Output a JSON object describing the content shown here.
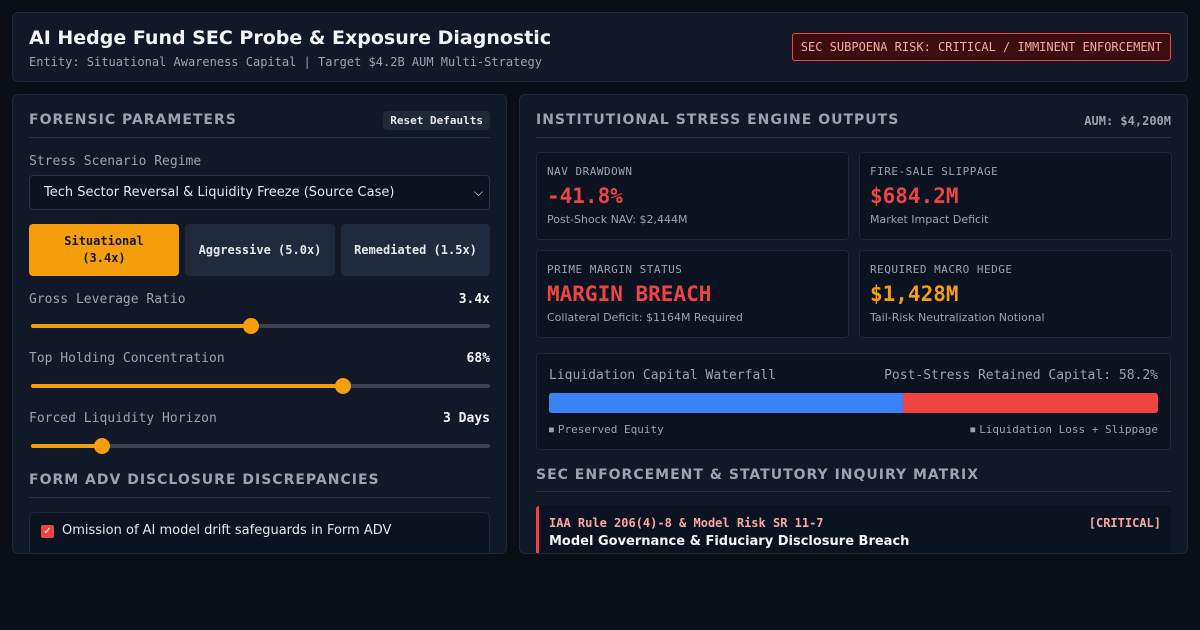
{
  "header": {
    "title": "AI Hedge Fund SEC Probe & Exposure Diagnostic",
    "subtitle": "Entity: Situational Awareness Capital | Target $4.2B AUM Multi-Strategy",
    "risk_badge": "SEC SUBPOENA RISK: CRITICAL / IMMINENT ENFORCEMENT"
  },
  "forensic": {
    "title": "FORENSIC PARAMETERS",
    "reset_label": "Reset Defaults",
    "scenario_label": "Stress Scenario Regime",
    "scenario_value": "Tech Sector Reversal & Liquidity Freeze (Source Case)",
    "presets": [
      {
        "label": "Situational\n(3.4x)",
        "active": true
      },
      {
        "label": "Aggressive (5.0x)",
        "active": false
      },
      {
        "label": "Remediated (1.5x)",
        "active": false
      }
    ],
    "sliders": [
      {
        "label": "Gross Leverage Ratio",
        "display": "3.4x",
        "fraction": 0.48
      },
      {
        "label": "Top Holding Concentration",
        "display": "68%",
        "fraction": 0.68
      },
      {
        "label": "Forced Liquidity Horizon",
        "display": "3 Days",
        "fraction": 0.155
      }
    ]
  },
  "adv": {
    "title": "FORM ADV DISCLOSURE DISCREPANCIES",
    "items": [
      {
        "label": "Omission of AI model drift safeguards in Form ADV",
        "checked": true
      }
    ]
  },
  "outputs": {
    "title": "INSTITUTIONAL STRESS ENGINE OUTPUTS",
    "aum": "AUM: $4,200M",
    "metrics": [
      {
        "label": "NAV DRAWDOWN",
        "value": "-41.8%",
        "sub": "Post-Shock NAV: $2,444M",
        "tone": "red"
      },
      {
        "label": "FIRE-SALE SLIPPAGE",
        "value": "$684.2M",
        "sub": "Market Impact Deficit",
        "tone": "red"
      },
      {
        "label": "PRIME MARGIN STATUS",
        "value": "MARGIN BREACH",
        "sub": "Collateral Deficit: $1164M Required",
        "tone": "red"
      },
      {
        "label": "REQUIRED MACRO HEDGE",
        "value": "$1,428M",
        "sub": "Tail-Risk Neutralization Notional",
        "tone": "amber"
      }
    ]
  },
  "waterfall": {
    "title": "Liquidation Capital Waterfall",
    "retained_label": "Post-Stress Retained Capital: 58.2%",
    "preserved_fraction": 0.582,
    "legend_preserved": "Preserved Equity",
    "legend_loss": "Liquidation Loss + Slippage",
    "colors": {
      "preserved": "#3b82f6",
      "loss": "#ef4444"
    }
  },
  "matrix": {
    "title": "SEC ENFORCEMENT & STATUTORY INQUIRY MATRIX",
    "items": [
      {
        "rule": "IAA Rule 206(4)-8 & Model Risk SR 11-7",
        "severity": "[CRITICAL]",
        "title": "Model Governance & Fiduciary Disclosure Breach"
      }
    ]
  }
}
